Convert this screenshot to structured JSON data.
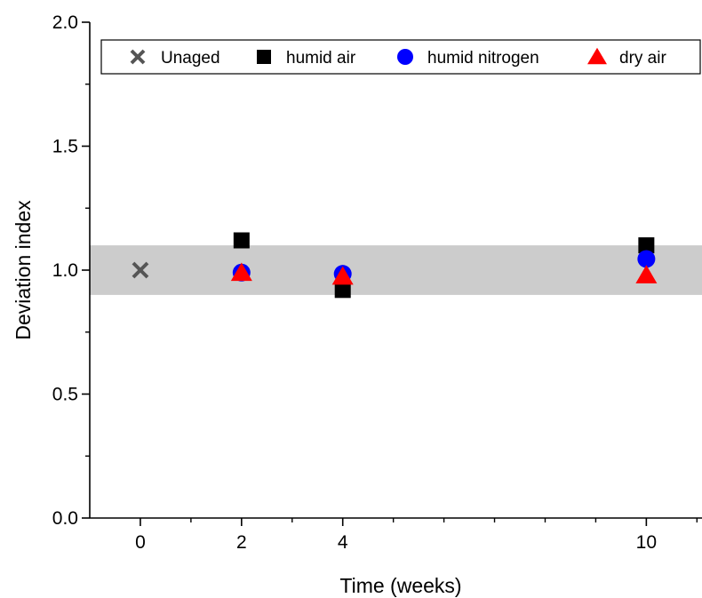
{
  "chart_data": {
    "type": "scatter",
    "title": "",
    "xlabel": "Time (weeks)",
    "ylabel": "Deviation index",
    "xlim": [
      -1,
      11.1
    ],
    "ylim": [
      0,
      2.0
    ],
    "x_ticks": [
      0,
      2,
      4,
      10
    ],
    "x_tick_labels": [
      "0",
      "2",
      "4",
      "10"
    ],
    "y_ticks": [
      0.0,
      0.5,
      1.0,
      1.5,
      2.0
    ],
    "y_tick_labels": [
      "0.0",
      "0.5",
      "1.0",
      "1.5",
      "2.0"
    ],
    "band": {
      "y_min": 0.9,
      "y_max": 1.1,
      "color": "#cccccc"
    },
    "grid": false,
    "legend_position": "top",
    "series": [
      {
        "name": "Unaged",
        "marker": "x",
        "color": "#555555",
        "x": [
          0
        ],
        "y": [
          1.0
        ]
      },
      {
        "name": "humid air",
        "marker": "square",
        "color": "#000000",
        "x": [
          2,
          4,
          10
        ],
        "y": [
          1.12,
          0.92,
          1.1
        ]
      },
      {
        "name": "humid nitrogen",
        "marker": "circle",
        "color": "#0000ff",
        "x": [
          2,
          4,
          10
        ],
        "y": [
          0.99,
          0.985,
          1.045
        ]
      },
      {
        "name": "dry air",
        "marker": "triangle",
        "color": "#ff0000",
        "x": [
          2,
          4,
          10
        ],
        "y": [
          0.99,
          0.975,
          0.98
        ]
      }
    ]
  }
}
